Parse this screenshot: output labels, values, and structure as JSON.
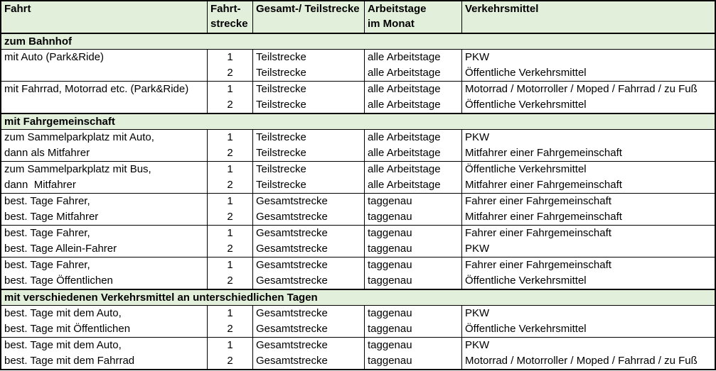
{
  "table": {
    "header": {
      "fahrt": "Fahrt",
      "fahrtstrecke_line1": "Fahrt-",
      "fahrtstrecke_line2": "strecke",
      "gesamt_teilstrecke": "Gesamt-/ Teilstrecke",
      "arbeitstage_line1": "Arbeitstage",
      "arbeitstage_line2": "im Monat",
      "verkehrsmittel": "Verkehrsmittel"
    },
    "sections": [
      {
        "title": "zum Bahnhof",
        "groups": [
          {
            "fahrt": [
              "mit Auto (Park&Ride)",
              ""
            ],
            "nr": [
              "1",
              "2"
            ],
            "strecke": [
              "Teilstrecke",
              "Teilstrecke"
            ],
            "tage": [
              "alle Arbeitstage",
              "alle Arbeitstage"
            ],
            "mittel": [
              "PKW",
              "Öffentliche Verkehrsmittel"
            ]
          },
          {
            "fahrt": [
              "mit Fahrrad, Motorrad etc. (Park&Ride)",
              ""
            ],
            "nr": [
              "1",
              "2"
            ],
            "strecke": [
              "Teilstrecke",
              "Teilstrecke"
            ],
            "tage": [
              "alle Arbeitstage",
              "alle Arbeitstage"
            ],
            "mittel": [
              "Motorrad / Motorroller / Moped / Fahrrad / zu Fuß",
              "Öffentliche Verkehrsmittel"
            ]
          }
        ]
      },
      {
        "title": "mit Fahrgemeinschaft",
        "groups": [
          {
            "fahrt": [
              "zum Sammelparkplatz mit Auto,",
              "dann als Mitfahrer"
            ],
            "nr": [
              "1",
              "2"
            ],
            "strecke": [
              "Teilstrecke",
              "Teilstrecke"
            ],
            "tage": [
              "alle Arbeitstage",
              "alle Arbeitstage"
            ],
            "mittel": [
              "PKW",
              "Mitfahrer einer Fahrgemeinschaft"
            ]
          },
          {
            "fahrt": [
              "zum Sammelparkplatz mit Bus,",
              "dann  Mitfahrer"
            ],
            "nr": [
              "1",
              "2"
            ],
            "strecke": [
              "Teilstrecke",
              "Teilstrecke"
            ],
            "tage": [
              "alle Arbeitstage",
              "alle Arbeitstage"
            ],
            "mittel": [
              "Öffentliche Verkehrsmittel",
              "Mitfahrer einer Fahrgemeinschaft"
            ]
          },
          {
            "fahrt": [
              "best. Tage Fahrer,",
              "best. Tage Mitfahrer"
            ],
            "nr": [
              "1",
              "2"
            ],
            "strecke": [
              "Gesamtstrecke",
              "Gesamtstrecke"
            ],
            "tage": [
              "taggenau",
              "taggenau"
            ],
            "mittel": [
              "Fahrer einer Fahrgemeinschaft",
              "Mitfahrer einer Fahrgemeinschaft"
            ]
          },
          {
            "fahrt": [
              "best. Tage Fahrer,",
              "best. Tage Allein-Fahrer"
            ],
            "nr": [
              "1",
              "2"
            ],
            "strecke": [
              "Gesamtstrecke",
              "Gesamtstrecke"
            ],
            "tage": [
              "taggenau",
              "taggenau"
            ],
            "mittel": [
              "Fahrer einer Fahrgemeinschaft",
              "PKW"
            ]
          },
          {
            "fahrt": [
              "best. Tage Fahrer,",
              "best. Tage Öffentlichen"
            ],
            "nr": [
              "1",
              "2"
            ],
            "strecke": [
              "Gesamtstrecke",
              "Gesamtstrecke"
            ],
            "tage": [
              "taggenau",
              "taggenau"
            ],
            "mittel": [
              "Fahrer einer Fahrgemeinschaft",
              "Öffentliche Verkehrsmittel"
            ]
          }
        ]
      },
      {
        "title": "mit verschiedenen Verkehrsmittel an unterschiedlichen Tagen",
        "groups": [
          {
            "fahrt": [
              "best. Tage mit dem Auto,",
              "best. Tage mit Öffentlichen"
            ],
            "nr": [
              "1",
              "2"
            ],
            "strecke": [
              "Gesamtstrecke",
              "Gesamtstrecke"
            ],
            "tage": [
              "taggenau",
              "taggenau"
            ],
            "mittel": [
              "PKW",
              "Öffentliche Verkehrsmittel"
            ]
          },
          {
            "fahrt": [
              "best. Tage mit dem Auto,",
              "best. Tage mit dem Fahrrad"
            ],
            "nr": [
              "1",
              "2"
            ],
            "strecke": [
              "Gesamtstrecke",
              "Gesamtstrecke"
            ],
            "tage": [
              "taggenau",
              "taggenau"
            ],
            "mittel": [
              "PKW",
              "Motorrad / Motorroller / Moped / Fahrrad / zu Fuß"
            ]
          }
        ]
      }
    ],
    "colors": {
      "header_section_bg": "#e2efda",
      "border": "#000000",
      "text": "#000000",
      "row_bg": "#ffffff"
    }
  }
}
